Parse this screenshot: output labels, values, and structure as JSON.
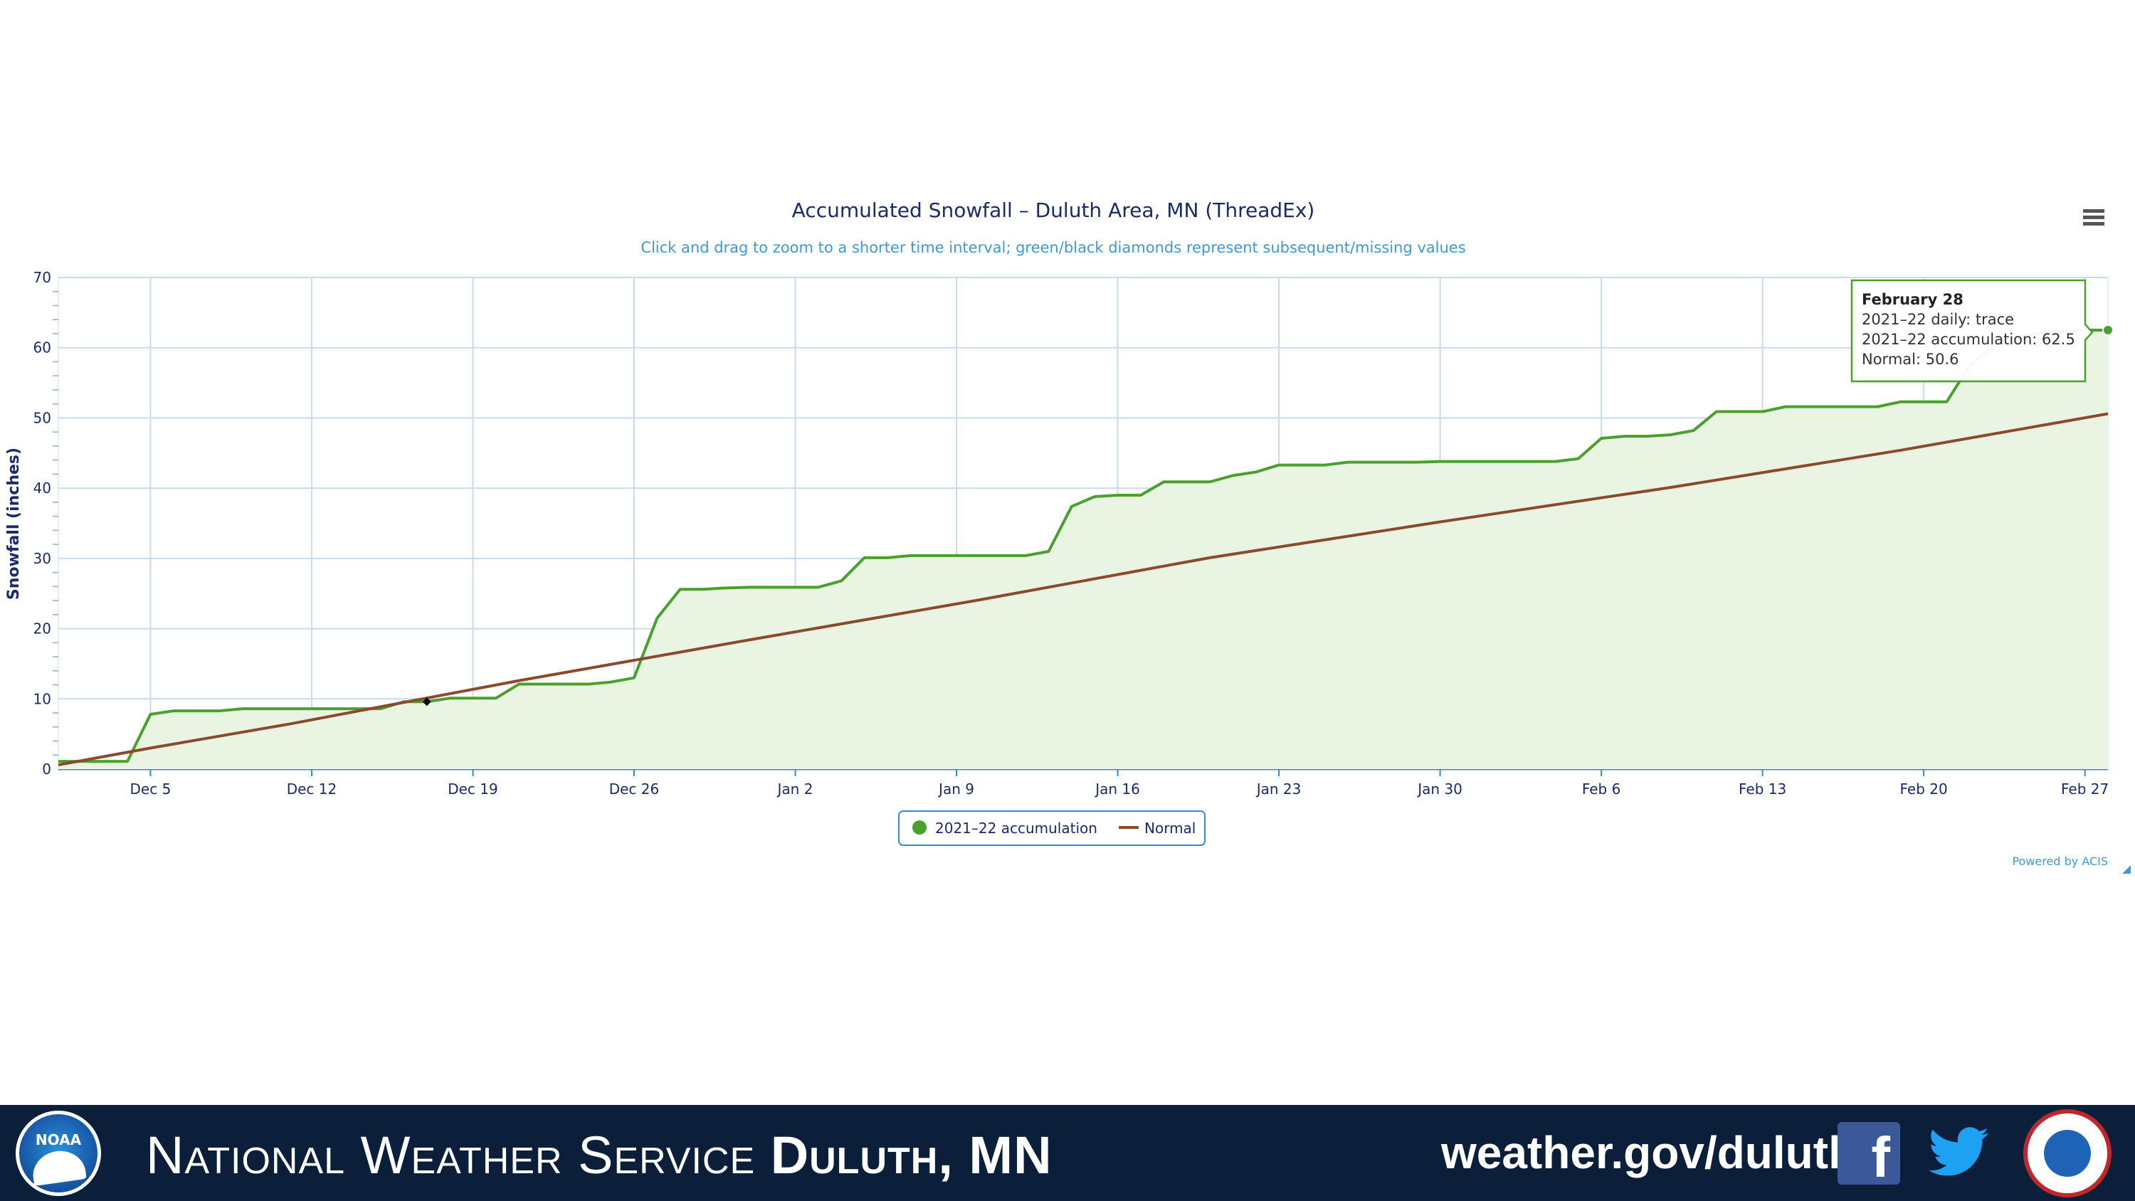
{
  "chart_data": {
    "type": "area",
    "title": "Accumulated Snowfall – Duluth Area, MN (ThreadEx)",
    "subtitle": "Click and drag to zoom to a shorter time interval; green/black diamonds represent subsequent/missing values",
    "ylabel": "Snowfall (inches)",
    "xlabel": "",
    "ylim": [
      0,
      70
    ],
    "yticks": [
      "0",
      "10",
      "20",
      "30",
      "40",
      "50",
      "60",
      "70"
    ],
    "x_tick_labels": [
      "Dec 5",
      "Dec 12",
      "Dec 19",
      "Dec 26",
      "Jan 2",
      "Jan 9",
      "Jan 16",
      "Jan 23",
      "Jan 30",
      "Feb 6",
      "Feb 13",
      "Feb 20",
      "Feb 27"
    ],
    "x_tick_days": [
      4,
      11,
      18,
      25,
      32,
      39,
      46,
      53,
      60,
      67,
      74,
      81,
      88
    ],
    "x_range_days": [
      0,
      89
    ],
    "grid": true,
    "legend_position": "bottom-center",
    "series": [
      {
        "name": "2021–22 accumulation",
        "color": "#4aa02c",
        "fill": "#e9f4e2",
        "points": [
          [
            0,
            1.1
          ],
          [
            2,
            1.1
          ],
          [
            3,
            1.1
          ],
          [
            4,
            7.8
          ],
          [
            5,
            8.3
          ],
          [
            6,
            8.3
          ],
          [
            7,
            8.3
          ],
          [
            8,
            8.6
          ],
          [
            9,
            8.6
          ],
          [
            10,
            8.6
          ],
          [
            11,
            8.6
          ],
          [
            12,
            8.6
          ],
          [
            13,
            8.6
          ],
          [
            14,
            8.6
          ],
          [
            15,
            9.6
          ],
          [
            16,
            9.6
          ],
          [
            17,
            10.1
          ],
          [
            18,
            10.1
          ],
          [
            19,
            10.1
          ],
          [
            20,
            12.1
          ],
          [
            21,
            12.1
          ],
          [
            22,
            12.1
          ],
          [
            23,
            12.1
          ],
          [
            24,
            12.4
          ],
          [
            25,
            13.0
          ],
          [
            26,
            21.5
          ],
          [
            27,
            25.6
          ],
          [
            28,
            25.6
          ],
          [
            29,
            25.8
          ],
          [
            30,
            25.9
          ],
          [
            31,
            25.9
          ],
          [
            32,
            25.9
          ],
          [
            33,
            25.9
          ],
          [
            34,
            26.8
          ],
          [
            35,
            30.1
          ],
          [
            36,
            30.1
          ],
          [
            37,
            30.4
          ],
          [
            38,
            30.4
          ],
          [
            39,
            30.4
          ],
          [
            40,
            30.4
          ],
          [
            41,
            30.4
          ],
          [
            42,
            30.4
          ],
          [
            43,
            31.0
          ],
          [
            44,
            37.4
          ],
          [
            45,
            38.8
          ],
          [
            46,
            39.0
          ],
          [
            47,
            39.0
          ],
          [
            48,
            40.9
          ],
          [
            49,
            40.9
          ],
          [
            50,
            40.9
          ],
          [
            51,
            41.8
          ],
          [
            52,
            42.3
          ],
          [
            53,
            43.3
          ],
          [
            54,
            43.3
          ],
          [
            55,
            43.3
          ],
          [
            56,
            43.7
          ],
          [
            57,
            43.7
          ],
          [
            58,
            43.7
          ],
          [
            59,
            43.7
          ],
          [
            60,
            43.8
          ],
          [
            61,
            43.8
          ],
          [
            62,
            43.8
          ],
          [
            63,
            43.8
          ],
          [
            64,
            43.8
          ],
          [
            65,
            43.8
          ],
          [
            66,
            44.2
          ],
          [
            67,
            47.1
          ],
          [
            68,
            47.4
          ],
          [
            69,
            47.4
          ],
          [
            70,
            47.6
          ],
          [
            71,
            48.2
          ],
          [
            72,
            50.9
          ],
          [
            73,
            50.9
          ],
          [
            74,
            50.9
          ],
          [
            75,
            51.6
          ],
          [
            76,
            51.6
          ],
          [
            77,
            51.6
          ],
          [
            78,
            51.6
          ],
          [
            79,
            51.6
          ],
          [
            80,
            52.3
          ],
          [
            81,
            52.3
          ],
          [
            82,
            52.3
          ],
          [
            83,
            57.5
          ],
          [
            84,
            60.2
          ],
          [
            85,
            61.5
          ],
          [
            86,
            62.1
          ],
          [
            87,
            62.3
          ],
          [
            88,
            62.5
          ],
          [
            89,
            62.5
          ]
        ]
      },
      {
        "name": "Normal",
        "color": "#8b4a2b",
        "points": [
          [
            0,
            0.6
          ],
          [
            4,
            3.0
          ],
          [
            10,
            6.4
          ],
          [
            20,
            12.6
          ],
          [
            30,
            18.4
          ],
          [
            40,
            24.1
          ],
          [
            50,
            30.1
          ],
          [
            60,
            35.2
          ],
          [
            70,
            40.1
          ],
          [
            80,
            45.4
          ],
          [
            89,
            50.6
          ]
        ]
      }
    ],
    "missing_marker": {
      "day": 16,
      "value": 9.6,
      "color": "#000000"
    },
    "tooltip": {
      "title": "February 28",
      "lines": [
        "2021–22 daily: trace",
        "2021–22 accumulation: 62.5",
        "Normal: 50.6"
      ]
    },
    "credit": "Powered by ACIS"
  },
  "footer": {
    "org_name": "National Weather Service",
    "office_name": "Duluth, MN",
    "url": "weather.gov/duluth",
    "noaa_label": "NOAA",
    "bg_color": "#0b1f3a"
  },
  "icons": {
    "menu": "hamburger-menu-icon",
    "facebook": "facebook-icon",
    "twitter": "twitter-icon",
    "noaa": "noaa-logo",
    "nws": "nws-logo"
  }
}
